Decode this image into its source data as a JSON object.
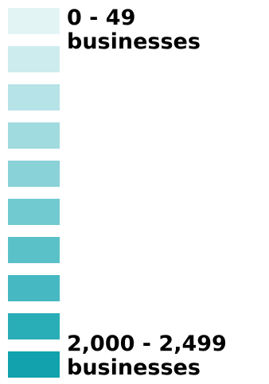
{
  "legend": {
    "colors": [
      "#e3f4f5",
      "#cdecee",
      "#b6e3e7",
      "#a0dbdf",
      "#89d2d8",
      "#72cad1",
      "#5bc1c9",
      "#45b8c1",
      "#29adb7",
      "#11a2ad"
    ],
    "top_label": {
      "range": "0 - 49",
      "unit": "businesses"
    },
    "bottom_label": {
      "range": "2,000 - 2,499",
      "unit": "businesses"
    }
  }
}
